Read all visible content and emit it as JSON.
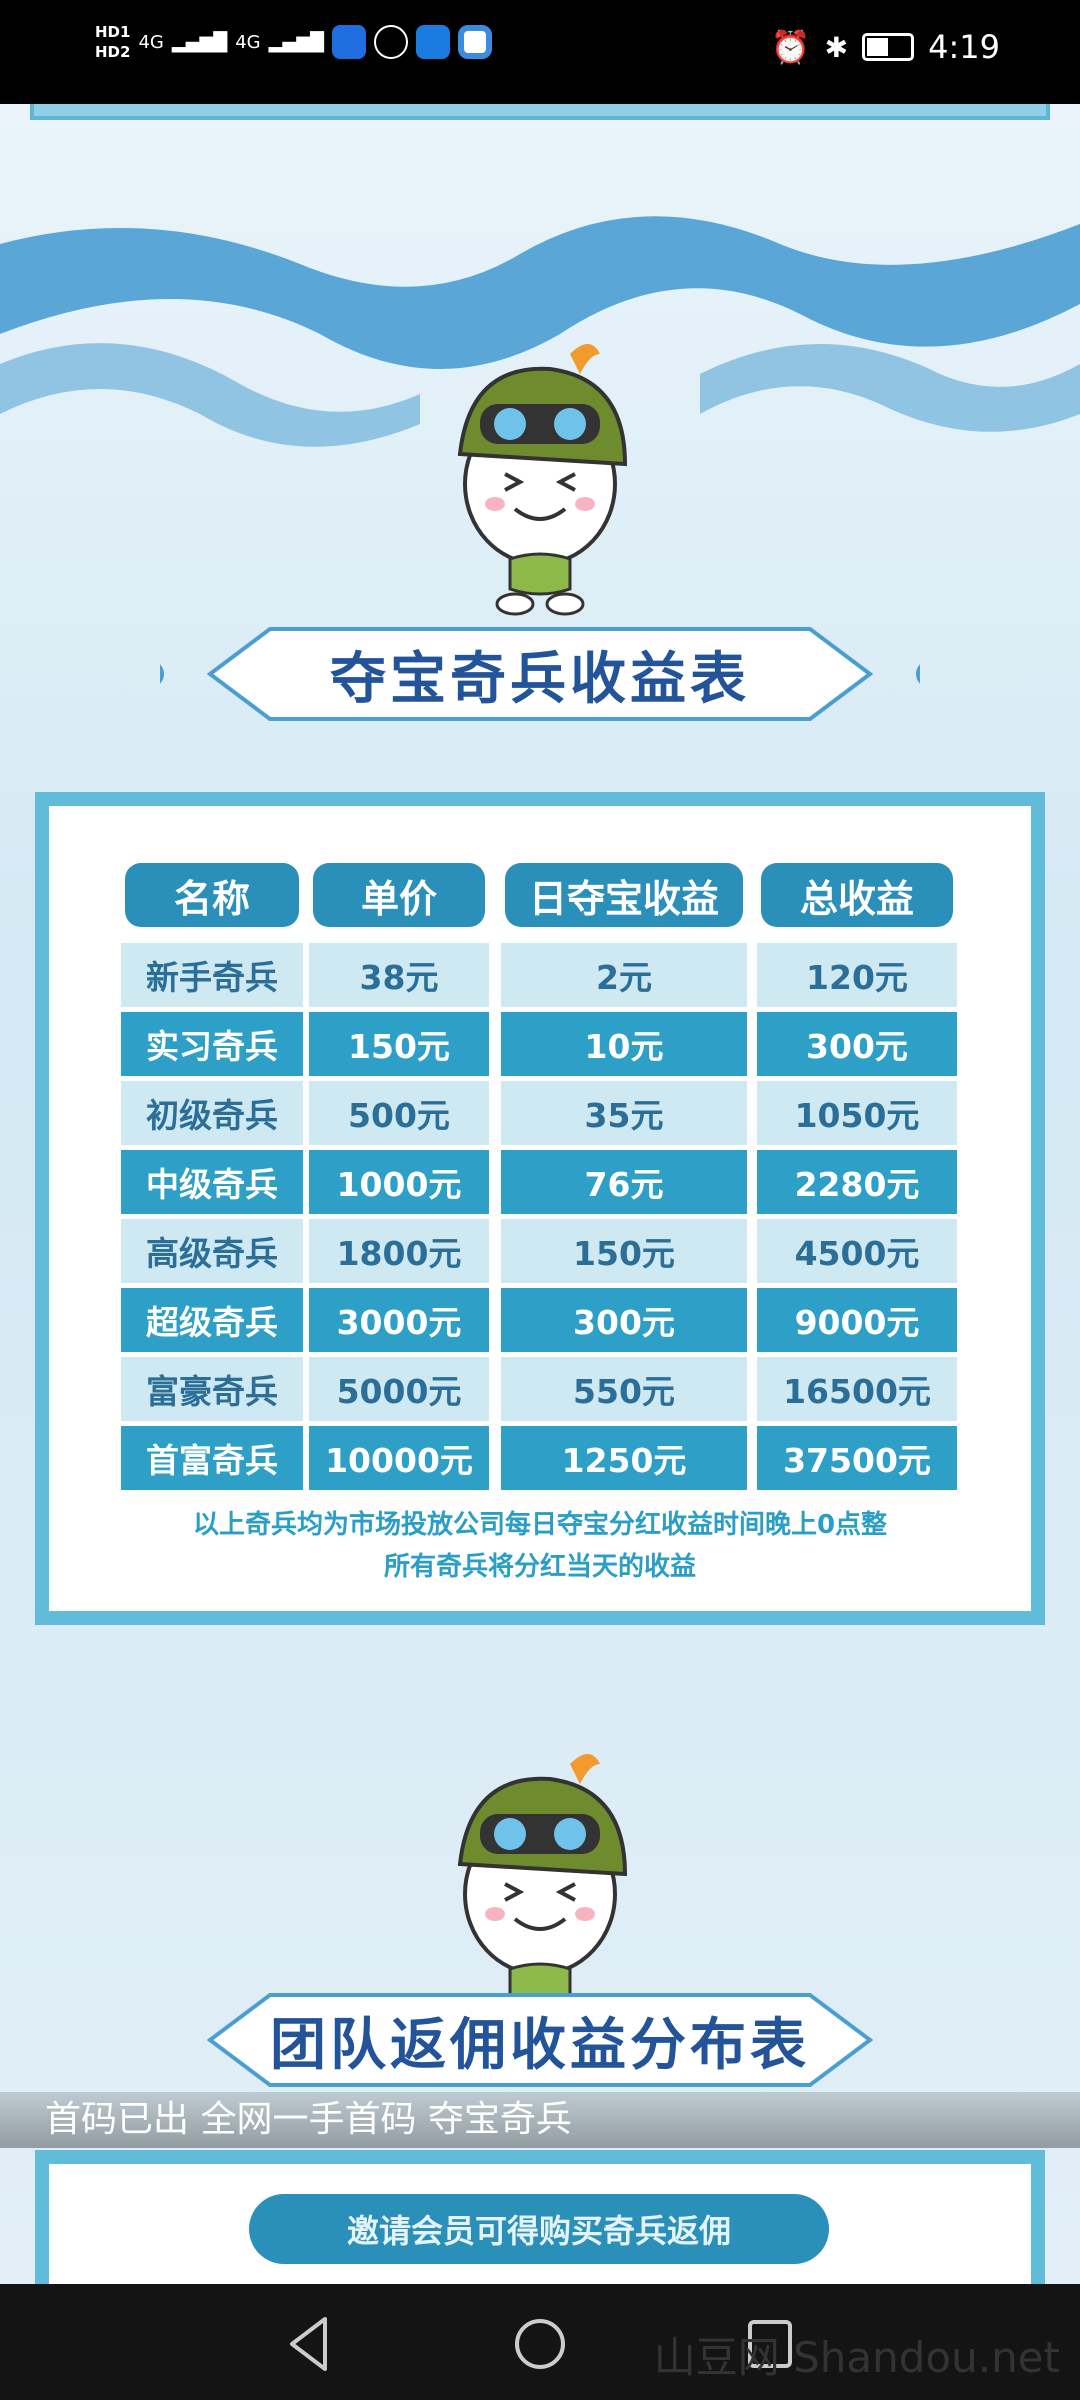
{
  "status_bar": {
    "sim1": "HD1",
    "sim2": "HD2",
    "network1": "4G",
    "network2": "4G",
    "time": "4:19",
    "battery_percent": 45
  },
  "section1": {
    "title": "夺宝奇兵收益表"
  },
  "table": {
    "headers": [
      "名称",
      "单价",
      "日夺宝收益",
      "总收益"
    ],
    "rows": [
      [
        "新手奇兵",
        "38元",
        "2元",
        "120元"
      ],
      [
        "实习奇兵",
        "150元",
        "10元",
        "300元"
      ],
      [
        "初级奇兵",
        "500元",
        "35元",
        "1050元"
      ],
      [
        "中级奇兵",
        "1000元",
        "76元",
        "2280元"
      ],
      [
        "高级奇兵",
        "1800元",
        "150元",
        "4500元"
      ],
      [
        "超级奇兵",
        "3000元",
        "300元",
        "9000元"
      ],
      [
        "富豪奇兵",
        "5000元",
        "550元",
        "16500元"
      ],
      [
        "首富奇兵",
        "10000元",
        "1250元",
        "37500元"
      ]
    ],
    "note_line1": "以上奇兵均为市场投放公司每日夺宝分红收益时间晚上0点整",
    "note_line2": "所有奇兵将分红当天的收益"
  },
  "section2": {
    "title": "团队返佣收益分布表",
    "pill": "邀请会员可得购买奇兵返佣"
  },
  "caption": "首码已出 全网一手首码 夺宝奇兵",
  "watermark": "山豆网 Shandou.net",
  "colors": {
    "accent": "#2e9fc6",
    "title": "#23549a",
    "panel_border": "#61bcd9"
  }
}
